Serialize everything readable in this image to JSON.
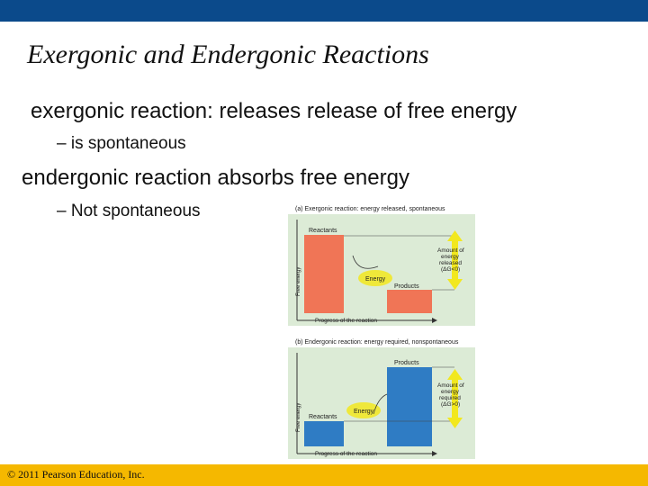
{
  "slide": {
    "title": "Exergonic and Endergonic Reactions",
    "bullets": {
      "exergonic_term": "exergonic reaction:",
      "exergonic_desc": "releases release of free energy",
      "exergonic_sub": "– is spontaneous",
      "endergonic_term": "endergonic reaction",
      "endergonic_desc": "absorbs free energy",
      "endergonic_sub": "– Not spontaneous"
    },
    "footer": "© 2011 Pearson Education, Inc."
  },
  "figure": {
    "panel_a": {
      "heading": "(a) Exergonic reaction: energy released, spontaneous",
      "reactants": "Reactants",
      "products": "Products",
      "energy": "Energy",
      "amount_lines": [
        "Amount of",
        "energy",
        "released",
        "(ΔG<0)"
      ],
      "yaxis": "Free energy",
      "xaxis": "Progress of the reaction"
    },
    "panel_b": {
      "heading": "(b) Endergonic reaction: energy required, nonspontaneous",
      "reactants": "Reactants",
      "products": "Products",
      "energy": "Energy",
      "amount_lines": [
        "Amount of",
        "energy",
        "required",
        "(ΔG>0)"
      ],
      "yaxis": "Free energy",
      "xaxis": "Progress of the reaction"
    },
    "colors": {
      "exergonic_bar": "#f07556",
      "endergonic_bar": "#2f7cc4",
      "arrow": "#f2e81e",
      "plot_bg": "#dcebd6"
    }
  }
}
